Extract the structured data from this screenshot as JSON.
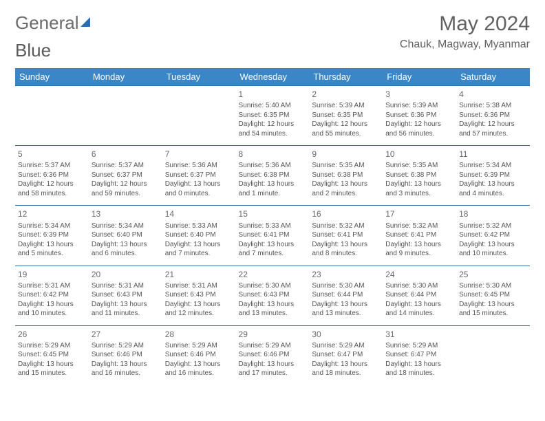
{
  "logo": {
    "text1": "General",
    "text2": "Blue"
  },
  "title": "May 2024",
  "location": "Chauk, Magway, Myanmar",
  "colors": {
    "header_bg": "#3b86c6",
    "header_text": "#ffffff",
    "cell_border": "#2a6eb6",
    "text": "#555555",
    "title_text": "#616161"
  },
  "weekdays": [
    "Sunday",
    "Monday",
    "Tuesday",
    "Wednesday",
    "Thursday",
    "Friday",
    "Saturday"
  ],
  "weeks": [
    [
      null,
      null,
      null,
      {
        "d": "1",
        "sr": "5:40 AM",
        "ss": "6:35 PM",
        "dl": "12 hours and 54 minutes."
      },
      {
        "d": "2",
        "sr": "5:39 AM",
        "ss": "6:35 PM",
        "dl": "12 hours and 55 minutes."
      },
      {
        "d": "3",
        "sr": "5:39 AM",
        "ss": "6:36 PM",
        "dl": "12 hours and 56 minutes."
      },
      {
        "d": "4",
        "sr": "5:38 AM",
        "ss": "6:36 PM",
        "dl": "12 hours and 57 minutes."
      }
    ],
    [
      {
        "d": "5",
        "sr": "5:37 AM",
        "ss": "6:36 PM",
        "dl": "12 hours and 58 minutes."
      },
      {
        "d": "6",
        "sr": "5:37 AM",
        "ss": "6:37 PM",
        "dl": "12 hours and 59 minutes."
      },
      {
        "d": "7",
        "sr": "5:36 AM",
        "ss": "6:37 PM",
        "dl": "13 hours and 0 minutes."
      },
      {
        "d": "8",
        "sr": "5:36 AM",
        "ss": "6:38 PM",
        "dl": "13 hours and 1 minute."
      },
      {
        "d": "9",
        "sr": "5:35 AM",
        "ss": "6:38 PM",
        "dl": "13 hours and 2 minutes."
      },
      {
        "d": "10",
        "sr": "5:35 AM",
        "ss": "6:38 PM",
        "dl": "13 hours and 3 minutes."
      },
      {
        "d": "11",
        "sr": "5:34 AM",
        "ss": "6:39 PM",
        "dl": "13 hours and 4 minutes."
      }
    ],
    [
      {
        "d": "12",
        "sr": "5:34 AM",
        "ss": "6:39 PM",
        "dl": "13 hours and 5 minutes."
      },
      {
        "d": "13",
        "sr": "5:34 AM",
        "ss": "6:40 PM",
        "dl": "13 hours and 6 minutes."
      },
      {
        "d": "14",
        "sr": "5:33 AM",
        "ss": "6:40 PM",
        "dl": "13 hours and 7 minutes."
      },
      {
        "d": "15",
        "sr": "5:33 AM",
        "ss": "6:41 PM",
        "dl": "13 hours and 7 minutes."
      },
      {
        "d": "16",
        "sr": "5:32 AM",
        "ss": "6:41 PM",
        "dl": "13 hours and 8 minutes."
      },
      {
        "d": "17",
        "sr": "5:32 AM",
        "ss": "6:41 PM",
        "dl": "13 hours and 9 minutes."
      },
      {
        "d": "18",
        "sr": "5:32 AM",
        "ss": "6:42 PM",
        "dl": "13 hours and 10 minutes."
      }
    ],
    [
      {
        "d": "19",
        "sr": "5:31 AM",
        "ss": "6:42 PM",
        "dl": "13 hours and 10 minutes."
      },
      {
        "d": "20",
        "sr": "5:31 AM",
        "ss": "6:43 PM",
        "dl": "13 hours and 11 minutes."
      },
      {
        "d": "21",
        "sr": "5:31 AM",
        "ss": "6:43 PM",
        "dl": "13 hours and 12 minutes."
      },
      {
        "d": "22",
        "sr": "5:30 AM",
        "ss": "6:43 PM",
        "dl": "13 hours and 13 minutes."
      },
      {
        "d": "23",
        "sr": "5:30 AM",
        "ss": "6:44 PM",
        "dl": "13 hours and 13 minutes."
      },
      {
        "d": "24",
        "sr": "5:30 AM",
        "ss": "6:44 PM",
        "dl": "13 hours and 14 minutes."
      },
      {
        "d": "25",
        "sr": "5:30 AM",
        "ss": "6:45 PM",
        "dl": "13 hours and 15 minutes."
      }
    ],
    [
      {
        "d": "26",
        "sr": "5:29 AM",
        "ss": "6:45 PM",
        "dl": "13 hours and 15 minutes."
      },
      {
        "d": "27",
        "sr": "5:29 AM",
        "ss": "6:46 PM",
        "dl": "13 hours and 16 minutes."
      },
      {
        "d": "28",
        "sr": "5:29 AM",
        "ss": "6:46 PM",
        "dl": "13 hours and 16 minutes."
      },
      {
        "d": "29",
        "sr": "5:29 AM",
        "ss": "6:46 PM",
        "dl": "13 hours and 17 minutes."
      },
      {
        "d": "30",
        "sr": "5:29 AM",
        "ss": "6:47 PM",
        "dl": "13 hours and 18 minutes."
      },
      {
        "d": "31",
        "sr": "5:29 AM",
        "ss": "6:47 PM",
        "dl": "13 hours and 18 minutes."
      },
      null
    ]
  ],
  "labels": {
    "sunrise": "Sunrise:",
    "sunset": "Sunset:",
    "daylight": "Daylight:"
  }
}
